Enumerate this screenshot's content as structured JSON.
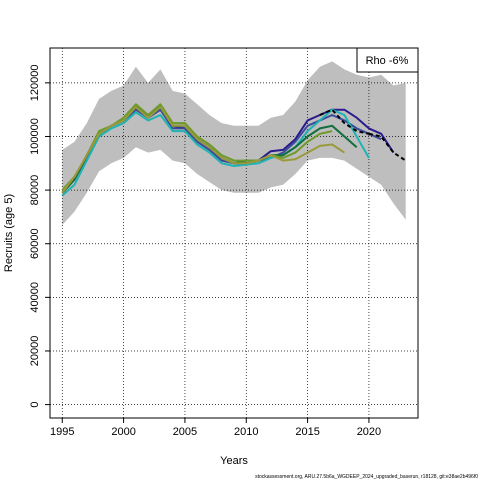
{
  "chart_data": {
    "type": "line",
    "xlabel": "Years",
    "ylabel": "Recruits (age 5)",
    "xlim": [
      1994,
      2024
    ],
    "ylim": [
      -5000,
      133000
    ],
    "xticks": [
      1995,
      2000,
      2005,
      2010,
      2015,
      2020
    ],
    "yticks": [
      0,
      20000,
      40000,
      60000,
      80000,
      100000,
      120000
    ],
    "grid": true,
    "legend_text": "Rho -6%",
    "legend_position": "top-right",
    "footer": "stockassessment.org, ARU.27.5b6a_WGDEEP_2024_upgraded_baserun, r18128, git:e38ae2b496f0",
    "band": {
      "color": "#bebebe",
      "x": [
        1995,
        1996,
        1997,
        1998,
        1999,
        2000,
        2001,
        2002,
        2003,
        2004,
        2005,
        2006,
        2007,
        2008,
        2009,
        2010,
        2011,
        2012,
        2013,
        2014,
        2015,
        2016,
        2017,
        2018,
        2019,
        2020,
        2021,
        2022,
        2023
      ],
      "upper": [
        95000,
        98000,
        105000,
        114000,
        117000,
        119000,
        126000,
        120000,
        125000,
        117000,
        116000,
        112000,
        108000,
        105000,
        104000,
        104000,
        104000,
        107000,
        108000,
        113000,
        121000,
        126000,
        128000,
        125000,
        123000,
        122000,
        123000,
        119000,
        120000
      ],
      "lower": [
        67000,
        72000,
        79000,
        87000,
        90000,
        92000,
        96000,
        94000,
        95000,
        91000,
        90000,
        86000,
        83000,
        80000,
        79000,
        79000,
        79000,
        81000,
        82000,
        86000,
        91000,
        92000,
        92000,
        91000,
        88000,
        85000,
        82000,
        75000,
        69000
      ]
    },
    "series": [
      {
        "color": "#000000",
        "dashed": true,
        "x": [
          2020,
          2021,
          2022,
          2023
        ],
        "values": [
          101000,
          100000,
          94000,
          91000
        ]
      },
      {
        "color": "#000000",
        "dashed": true,
        "x": [
          2016,
          2017,
          2018,
          2019,
          2020
        ],
        "values": [
          108000,
          110000,
          105000,
          102000,
          101000
        ]
      },
      {
        "color": "#2b1b8f",
        "x": [
          1995,
          1996,
          1997,
          1998,
          1999,
          2000,
          2001,
          2002,
          2003,
          2004,
          2005,
          2006,
          2007,
          2008,
          2009,
          2010,
          2011,
          2012,
          2013,
          2014,
          2015,
          2016,
          2017,
          2018,
          2019,
          2020,
          2021,
          2022
        ],
        "values": [
          79000,
          84000,
          93000,
          101000,
          104000,
          106000,
          111000,
          107000,
          110000,
          104000,
          103000,
          99000,
          96000,
          92000,
          90000,
          90000,
          91000,
          94500,
          95000,
          99000,
          106000,
          108000,
          110000,
          110000,
          107000,
          103000,
          101000,
          94000
        ]
      },
      {
        "color": "#3b4c9a",
        "x": [
          1995,
          1996,
          1997,
          1998,
          1999,
          2000,
          2001,
          2002,
          2003,
          2004,
          2005,
          2006,
          2007,
          2008,
          2009,
          2010,
          2011,
          2012,
          2013,
          2014,
          2015,
          2016,
          2017,
          2018,
          2019,
          2020,
          2021
        ],
        "values": [
          79000,
          84000,
          92000,
          101000,
          104000,
          106000,
          110000,
          107000,
          110000,
          103000,
          103000,
          98000,
          95000,
          91000,
          90000,
          90000,
          91000,
          92000,
          94000,
          98000,
          104000,
          106000,
          108000,
          106000,
          103000,
          101000,
          99000
        ]
      },
      {
        "color": "#1fb3b3",
        "x": [
          1995,
          1996,
          1997,
          1998,
          1999,
          2000,
          2001,
          2002,
          2003,
          2004,
          2005,
          2006,
          2007,
          2008,
          2009,
          2010,
          2011,
          2012,
          2013,
          2014,
          2015,
          2016,
          2017,
          2018,
          2019,
          2020
        ],
        "values": [
          78000,
          82000,
          91000,
          100000,
          103000,
          105000,
          109000,
          106000,
          108000,
          102000,
          102000,
          97000,
          94000,
          90000,
          89000,
          89500,
          90000,
          92000,
          93000,
          96000,
          102000,
          106000,
          110000,
          108000,
          100000,
          92000
        ]
      },
      {
        "color": "#0f6e3a",
        "x": [
          1995,
          1996,
          1997,
          1998,
          1999,
          2000,
          2001,
          2002,
          2003,
          2004,
          2005,
          2006,
          2007,
          2008,
          2009,
          2010,
          2011,
          2012,
          2013,
          2014,
          2015,
          2016,
          2017,
          2018,
          2019
        ],
        "values": [
          79000,
          84000,
          93000,
          101000,
          104000,
          106000,
          111000,
          108000,
          111000,
          104000,
          104000,
          99000,
          96000,
          92000,
          90000,
          91000,
          91000,
          93000,
          93000,
          96000,
          100000,
          103000,
          104000,
          100000,
          96000
        ]
      },
      {
        "color": "#6e9a2a",
        "x": [
          1995,
          1996,
          1997,
          1998,
          1999,
          2000,
          2001,
          2002,
          2003,
          2004,
          2005,
          2006,
          2007,
          2008,
          2009,
          2010,
          2011,
          2012,
          2013,
          2014,
          2015,
          2016,
          2017
        ],
        "values": [
          80000,
          85000,
          93000,
          102000,
          104000,
          107000,
          112000,
          108000,
          112000,
          105000,
          105000,
          100000,
          97000,
          93000,
          91000,
          91000,
          91000,
          93000,
          92000,
          94000,
          98000,
          101000,
          102000
        ]
      },
      {
        "color": "#9b9a3a",
        "x": [
          1995,
          1996,
          1997,
          1998,
          1999,
          2000,
          2001,
          2002,
          2003,
          2004,
          2005,
          2006,
          2007,
          2008,
          2009,
          2010,
          2011,
          2012,
          2013,
          2014,
          2015,
          2016,
          2017,
          2018
        ],
        "values": [
          79000,
          85000,
          93000,
          101000,
          104000,
          106000,
          111000,
          107000,
          111000,
          104000,
          104000,
          99000,
          96000,
          92000,
          90000,
          90000,
          91000,
          93000,
          91000,
          91500,
          94000,
          96500,
          97000,
          94000
        ]
      }
    ]
  }
}
